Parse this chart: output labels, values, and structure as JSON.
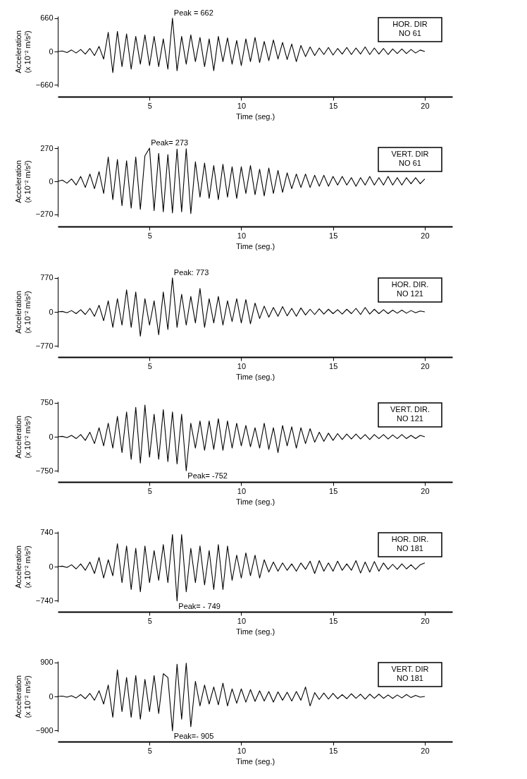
{
  "chart_data": [
    {
      "type": "line",
      "ylabel": "Acceleration\n(x 10⁻² m/s²)",
      "xlabel": "Time (seg.)",
      "color": "#000000",
      "xlim": [
        0,
        21.5
      ],
      "xticks": [
        5,
        10,
        15,
        20
      ],
      "ylim": [
        -700,
        700
      ],
      "yticks": [
        -660,
        0,
        660
      ],
      "x": [
        0,
        0.25,
        0.5,
        0.75,
        1,
        1.25,
        1.5,
        1.75,
        2,
        2.25,
        2.5,
        2.75,
        3,
        3.25,
        3.5,
        3.75,
        4,
        4.25,
        4.5,
        4.75,
        5,
        5.25,
        5.5,
        5.75,
        6,
        6.25,
        6.5,
        6.75,
        7,
        7.25,
        7.5,
        7.75,
        8,
        8.25,
        8.5,
        8.75,
        9,
        9.25,
        9.5,
        9.75,
        10,
        10.25,
        10.5,
        10.75,
        11,
        11.25,
        11.5,
        11.75,
        12,
        12.25,
        12.5,
        12.75,
        13,
        13.25,
        13.5,
        13.75,
        14,
        14.25,
        14.5,
        14.75,
        15,
        15.25,
        15.5,
        15.75,
        16,
        16.25,
        16.5,
        16.75,
        17,
        17.25,
        17.5,
        17.75,
        18,
        18.25,
        18.5,
        18.75,
        19,
        19.25,
        19.5,
        19.75,
        20
      ],
      "values": [
        0,
        10,
        -20,
        30,
        -30,
        40,
        -50,
        60,
        -80,
        100,
        -150,
        380,
        -420,
        400,
        -300,
        350,
        -350,
        300,
        -250,
        330,
        -280,
        300,
        -300,
        250,
        -350,
        662,
        -380,
        300,
        -250,
        330,
        -200,
        280,
        -300,
        250,
        -380,
        300,
        -200,
        270,
        -250,
        220,
        -280,
        250,
        -200,
        280,
        -220,
        200,
        -180,
        230,
        -150,
        180,
        -160,
        150,
        -200,
        120,
        -100,
        90,
        -80,
        70,
        -60,
        80,
        -70,
        60,
        -50,
        80,
        -60,
        70,
        -50,
        90,
        -60,
        70,
        -50,
        60,
        -60,
        50,
        -40,
        50,
        -40,
        40,
        -30,
        30,
        0
      ],
      "annotations": [
        {
          "text": "Peak = 662",
          "x": 6.25,
          "y": 662
        },
        "HOR. DIR\nNO 61"
      ]
    },
    {
      "type": "line",
      "ylabel": "Acceleration\n(x 10⁻² m/s²)",
      "xlabel": "Time (seg.)",
      "color": "#000000",
      "xlim": [
        0,
        21.5
      ],
      "xticks": [
        5,
        10,
        15,
        20
      ],
      "ylim": [
        -290,
        290
      ],
      "yticks": [
        -270,
        0,
        270
      ],
      "x": [
        0,
        0.25,
        0.5,
        0.75,
        1,
        1.25,
        1.5,
        1.75,
        2,
        2.25,
        2.5,
        2.75,
        3,
        3.25,
        3.5,
        3.75,
        4,
        4.25,
        4.5,
        4.75,
        5,
        5.25,
        5.5,
        5.75,
        6,
        6.25,
        6.5,
        6.75,
        7,
        7.25,
        7.5,
        7.75,
        8,
        8.25,
        8.5,
        8.75,
        9,
        9.25,
        9.5,
        9.75,
        10,
        10.25,
        10.5,
        10.75,
        11,
        11.25,
        11.5,
        11.75,
        12,
        12.25,
        12.5,
        12.75,
        13,
        13.25,
        13.5,
        13.75,
        14,
        14.25,
        14.5,
        14.75,
        15,
        15.25,
        15.5,
        15.75,
        16,
        16.25,
        16.5,
        16.75,
        17,
        17.25,
        17.5,
        17.75,
        18,
        18.25,
        18.5,
        18.75,
        19,
        19.25,
        19.5,
        19.75,
        20
      ],
      "values": [
        0,
        10,
        -15,
        20,
        -30,
        40,
        -50,
        60,
        -60,
        80,
        -100,
        200,
        -150,
        180,
        -200,
        170,
        -220,
        200,
        -230,
        210,
        273,
        -240,
        230,
        -250,
        220,
        -260,
        265,
        -250,
        268,
        -265,
        160,
        -130,
        150,
        -140,
        130,
        -150,
        140,
        -130,
        120,
        -140,
        120,
        -100,
        130,
        -110,
        100,
        -120,
        110,
        -100,
        90,
        -90,
        70,
        -60,
        60,
        -50,
        60,
        -50,
        50,
        -40,
        50,
        -40,
        40,
        -30,
        40,
        -30,
        30,
        -40,
        30,
        -30,
        40,
        -30,
        30,
        -30,
        40,
        -30,
        30,
        -30,
        30,
        -20,
        30,
        -20,
        20
      ],
      "annotations": [
        {
          "text": "Peak= 273",
          "x": 5,
          "y": 273
        },
        "VERT. DIR\nNO 61"
      ]
    },
    {
      "type": "line",
      "ylabel": "Acceleration\n(x 10⁻² m/s²)",
      "xlabel": "Time (seg.)",
      "color": "#000000",
      "xlim": [
        0,
        21.5
      ],
      "xticks": [
        5,
        10,
        15,
        20
      ],
      "ylim": [
        -800,
        800
      ],
      "yticks": [
        -770,
        0,
        770
      ],
      "x": [
        0,
        0.25,
        0.5,
        0.75,
        1,
        1.25,
        1.5,
        1.75,
        2,
        2.25,
        2.5,
        2.75,
        3,
        3.25,
        3.5,
        3.75,
        4,
        4.25,
        4.5,
        4.75,
        5,
        5.25,
        5.5,
        5.75,
        6,
        6.25,
        6.5,
        6.75,
        7,
        7.25,
        7.5,
        7.75,
        8,
        8.25,
        8.5,
        8.75,
        9,
        9.25,
        9.5,
        9.75,
        10,
        10.25,
        10.5,
        10.75,
        11,
        11.25,
        11.5,
        11.75,
        12,
        12.25,
        12.5,
        12.75,
        13,
        13.25,
        13.5,
        13.75,
        14,
        14.25,
        14.5,
        14.75,
        15,
        15.25,
        15.5,
        15.75,
        16,
        16.25,
        16.5,
        16.75,
        17,
        17.25,
        17.5,
        17.75,
        18,
        18.25,
        18.5,
        18.75,
        19,
        19.25,
        19.5,
        19.75,
        20
      ],
      "values": [
        0,
        10,
        -20,
        30,
        -40,
        50,
        -60,
        80,
        -100,
        150,
        -200,
        250,
        -350,
        300,
        -300,
        500,
        -350,
        450,
        -550,
        300,
        -300,
        250,
        -520,
        450,
        -400,
        773,
        -350,
        400,
        -300,
        350,
        -250,
        530,
        -350,
        300,
        -250,
        350,
        -300,
        250,
        -220,
        300,
        -250,
        280,
        -270,
        200,
        -150,
        130,
        -120,
        100,
        -100,
        120,
        -90,
        80,
        -100,
        90,
        -70,
        60,
        -60,
        70,
        -50,
        60,
        -40,
        50,
        -50,
        60,
        -40,
        80,
        -60,
        100,
        -50,
        60,
        -40,
        50,
        -40,
        40,
        -30,
        40,
        -30,
        30,
        -20,
        20,
        0
      ],
      "annotations": [
        {
          "text": "Peak: 773",
          "x": 6.25,
          "y": 773
        },
        "HOR. DIR.\nNO 121"
      ]
    },
    {
      "type": "line",
      "ylabel": "Acceleration\n(x 10⁻² m/s²)",
      "xlabel": "Time (seg.)",
      "color": "#000000",
      "xlim": [
        0,
        21.5
      ],
      "xticks": [
        5,
        10,
        15,
        20
      ],
      "ylim": [
        -780,
        780
      ],
      "yticks": [
        -750,
        0,
        750
      ],
      "x": [
        0,
        0.25,
        0.5,
        0.75,
        1,
        1.25,
        1.5,
        1.75,
        2,
        2.25,
        2.5,
        2.75,
        3,
        3.25,
        3.5,
        3.75,
        4,
        4.25,
        4.5,
        4.75,
        5,
        5.25,
        5.5,
        5.75,
        6,
        6.25,
        6.5,
        6.75,
        7,
        7.25,
        7.5,
        7.75,
        8,
        8.25,
        8.5,
        8.75,
        9,
        9.25,
        9.5,
        9.75,
        10,
        10.25,
        10.5,
        10.75,
        11,
        11.25,
        11.5,
        11.75,
        12,
        12.25,
        12.5,
        12.75,
        13,
        13.25,
        13.5,
        13.75,
        14,
        14.25,
        14.5,
        14.75,
        15,
        15.25,
        15.5,
        15.75,
        16,
        16.25,
        16.5,
        16.75,
        17,
        17.25,
        17.5,
        17.75,
        18,
        18.25,
        18.5,
        18.75,
        19,
        19.25,
        19.5,
        19.75,
        20
      ],
      "values": [
        0,
        10,
        -20,
        30,
        -40,
        50,
        -80,
        100,
        -150,
        200,
        -200,
        300,
        -250,
        450,
        -350,
        550,
        -500,
        650,
        -580,
        700,
        -450,
        500,
        -500,
        600,
        -550,
        550,
        -600,
        500,
        -752,
        300,
        -250,
        350,
        -300,
        350,
        -280,
        400,
        -300,
        350,
        -250,
        300,
        -200,
        250,
        -220,
        200,
        -250,
        300,
        -280,
        200,
        -350,
        250,
        -200,
        220,
        -250,
        200,
        -150,
        180,
        -120,
        100,
        -100,
        80,
        -80,
        70,
        -60,
        60,
        -50,
        60,
        -50,
        50,
        -60,
        50,
        -40,
        50,
        -50,
        40,
        -40,
        50,
        -40,
        30,
        -40,
        30,
        0
      ],
      "annotations": [
        {
          "text": "Peak= -752",
          "x": 7,
          "y": -752
        },
        "VERT. DIR.\nNO 121"
      ]
    },
    {
      "type": "line",
      "ylabel": "Acceleration\n(x 10⁻² m/s²)",
      "xlabel": "Time (seg.)",
      "color": "#000000",
      "xlim": [
        0,
        21.5
      ],
      "xticks": [
        5,
        10,
        15,
        20
      ],
      "ylim": [
        -770,
        770
      ],
      "yticks": [
        -740,
        0,
        740
      ],
      "x": [
        0,
        0.25,
        0.5,
        0.75,
        1,
        1.25,
        1.5,
        1.75,
        2,
        2.25,
        2.5,
        2.75,
        3,
        3.25,
        3.5,
        3.75,
        4,
        4.25,
        4.5,
        4.75,
        5,
        5.25,
        5.5,
        5.75,
        6,
        6.25,
        6.5,
        6.75,
        7,
        7.25,
        7.5,
        7.75,
        8,
        8.25,
        8.5,
        8.75,
        9,
        9.25,
        9.5,
        9.75,
        10,
        10.25,
        10.5,
        10.75,
        11,
        11.25,
        11.5,
        11.75,
        12,
        12.25,
        12.5,
        12.75,
        13,
        13.25,
        13.5,
        13.75,
        14,
        14.25,
        14.5,
        14.75,
        15,
        15.25,
        15.5,
        15.75,
        16,
        16.25,
        16.5,
        16.75,
        17,
        17.25,
        17.5,
        17.75,
        18,
        18.25,
        18.5,
        18.75,
        19,
        19.25,
        19.5,
        19.75,
        20
      ],
      "values": [
        0,
        10,
        -20,
        40,
        -50,
        60,
        -80,
        100,
        -150,
        200,
        -250,
        150,
        -200,
        500,
        -350,
        450,
        -500,
        400,
        -550,
        450,
        -350,
        350,
        -300,
        480,
        -350,
        700,
        -749,
        700,
        -550,
        400,
        -350,
        450,
        -400,
        350,
        -500,
        480,
        -500,
        450,
        -300,
        250,
        -250,
        300,
        -200,
        250,
        -250,
        150,
        -120,
        100,
        -100,
        80,
        -80,
        60,
        -100,
        80,
        -60,
        120,
        -150,
        130,
        -100,
        80,
        -100,
        120,
        -80,
        60,
        -80,
        130,
        -140,
        100,
        -120,
        110,
        -100,
        80,
        -60,
        50,
        -60,
        60,
        -50,
        40,
        -60,
        40,
        80
      ],
      "annotations": [
        {
          "text": "Peak= - 749",
          "x": 6.5,
          "y": -749
        },
        "HOR. DIR.\nNO 181"
      ]
    },
    {
      "type": "line",
      "ylabel": "Acceleration\n(x 10⁻² m/s²)",
      "xlabel": "Time (seg.)",
      "color": "#000000",
      "xlim": [
        0,
        21.5
      ],
      "xticks": [
        5,
        10,
        15,
        20
      ],
      "ylim": [
        -930,
        930
      ],
      "yticks": [
        -900,
        0,
        900
      ],
      "x": [
        0,
        0.25,
        0.5,
        0.75,
        1,
        1.25,
        1.5,
        1.75,
        2,
        2.25,
        2.5,
        2.75,
        3,
        3.25,
        3.5,
        3.75,
        4,
        4.25,
        4.5,
        4.75,
        5,
        5.25,
        5.5,
        5.75,
        6,
        6.25,
        6.5,
        6.75,
        7,
        7.25,
        7.5,
        7.75,
        8,
        8.25,
        8.5,
        8.75,
        9,
        9.25,
        9.5,
        9.75,
        10,
        10.25,
        10.5,
        10.75,
        11,
        11.25,
        11.5,
        11.75,
        12,
        12.25,
        12.5,
        12.75,
        13,
        13.25,
        13.5,
        13.75,
        14,
        14.25,
        14.5,
        14.75,
        15,
        15.25,
        15.5,
        15.75,
        16,
        16.25,
        16.5,
        16.75,
        17,
        17.25,
        17.5,
        17.75,
        18,
        18.25,
        18.5,
        18.75,
        19,
        19.25,
        19.5,
        19.75,
        20
      ],
      "values": [
        0,
        10,
        -20,
        20,
        -40,
        50,
        -60,
        80,
        -100,
        150,
        -200,
        300,
        -550,
        700,
        -400,
        500,
        -550,
        550,
        -600,
        450,
        -400,
        550,
        -450,
        600,
        500,
        -905,
        850,
        -600,
        880,
        -800,
        400,
        -250,
        300,
        -200,
        250,
        -220,
        350,
        -250,
        200,
        -180,
        200,
        -150,
        180,
        -130,
        150,
        -120,
        130,
        -150,
        120,
        -100,
        110,
        -120,
        130,
        -100,
        250,
        -250,
        100,
        -80,
        90,
        -70,
        80,
        -60,
        50,
        -60,
        70,
        -50,
        60,
        -70,
        60,
        -50,
        60,
        -50,
        40,
        -50,
        40,
        -40,
        50,
        -30,
        30,
        -20,
        0
      ],
      "annotations": [
        {
          "text": "Peak=- 905",
          "x": 6.25,
          "y": -905
        },
        "VERT. DIR\nNO 181"
      ]
    }
  ]
}
